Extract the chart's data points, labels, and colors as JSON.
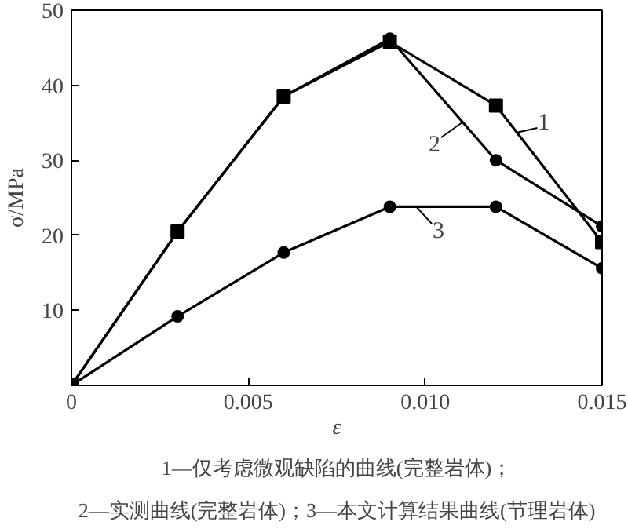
{
  "chart_data": {
    "type": "line",
    "xlabel": "ε",
    "ylabel": "σ/MPa",
    "x": [
      0,
      0.003,
      0.006,
      0.009,
      0.012,
      0.015
    ],
    "series": [
      {
        "color": "#000000",
        "marker": "square",
        "values": [
          0,
          20.5,
          38.5,
          45.8,
          37.3,
          19.1
        ]
      },
      {
        "color": "#000000",
        "marker": "circle",
        "values": [
          0,
          20.5,
          38.5,
          46.2,
          30,
          21.2
        ]
      },
      {
        "color": "#000000",
        "marker": "circle",
        "values": [
          0,
          9.2,
          17.7,
          23.8,
          23.8,
          15.6
        ]
      }
    ],
    "xlim": [
      0,
      0.015
    ],
    "xticks": [
      0,
      0.005,
      {
        "value": 0.01,
        "label": "0.010"
      },
      0.015
    ],
    "ylim": [
      0,
      50
    ],
    "yticks": [
      10,
      20,
      30,
      40,
      50
    ],
    "grid": false,
    "line_style": "solid",
    "annotations": [
      {
        "text": "1",
        "x": 0.0126,
        "y": 33.7
      },
      {
        "text": "2",
        "x": 0.01106,
        "y": 35.1
      },
      {
        "text": "3",
        "x": 0.00975,
        "y": 23.8
      },
      "1—仅考虑微观缺陷的曲线(完整岩体)；",
      "2—实测曲线(完整岩体)；3—本文计算结果曲线(节理岩体)"
    ]
  }
}
